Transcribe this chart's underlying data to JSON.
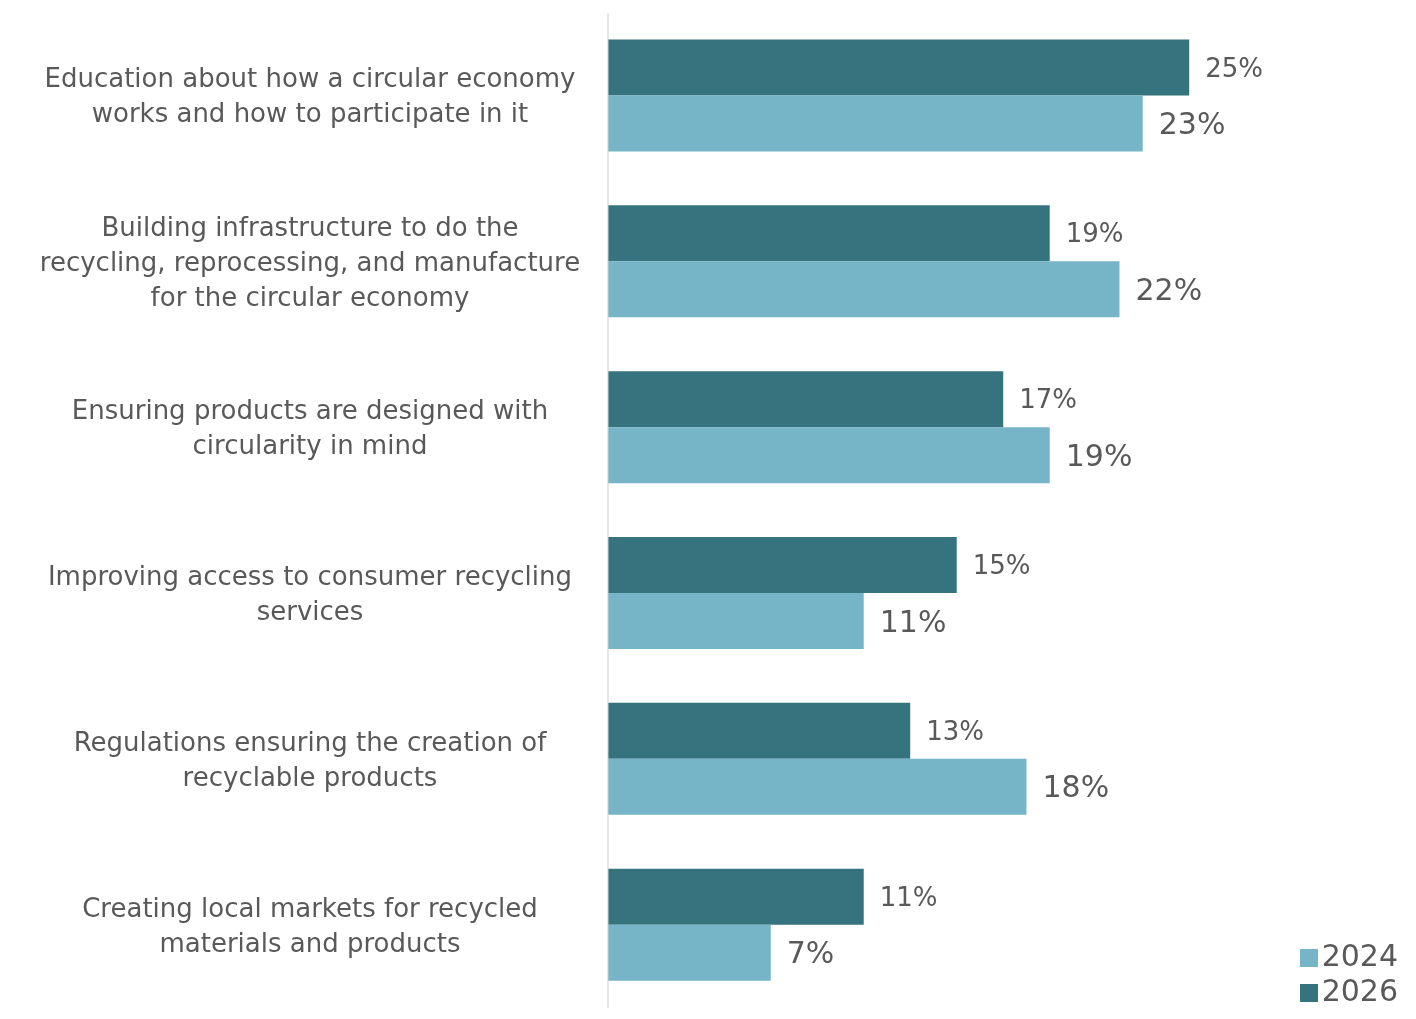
{
  "chart_data": {
    "type": "bar",
    "orientation": "horizontal",
    "categories": [
      "Education about how a circular economy works and how to participate in it",
      "Building infrastructure to do the recycling, reprocessing, and manufacture for the circular economy",
      "Ensuring products are designed with circularity in mind",
      "Improving access to consumer recycling services",
      "Regulations ensuring the creation of recyclable products",
      "Creating local markets for recycled materials and products"
    ],
    "series": [
      {
        "name": "2026",
        "color": "#35737f",
        "values": [
          25,
          19,
          17,
          15,
          13,
          11
        ],
        "value_labels": [
          "25%",
          "19%",
          "17%",
          "15%",
          "13%",
          "11%"
        ]
      },
      {
        "name": "2024",
        "color": "#75b5c7",
        "values": [
          23,
          22,
          19,
          11,
          18,
          7
        ],
        "value_labels": [
          "23%",
          "22%",
          "19%",
          "11%",
          "18%",
          "7%"
        ]
      }
    ],
    "legend": "bottom right",
    "grid": false
  }
}
